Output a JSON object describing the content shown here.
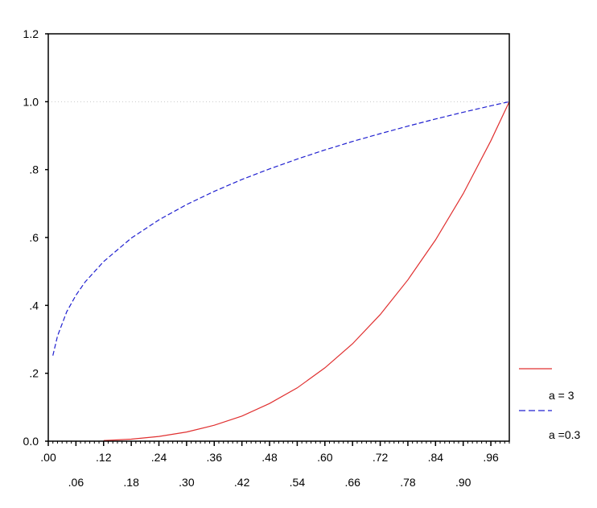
{
  "chart_data": {
    "type": "line",
    "title": "",
    "xlabel": "",
    "ylabel": "",
    "xlim": [
      0,
      1
    ],
    "ylim": [
      0,
      1.2
    ],
    "x_ticks": [
      0.0,
      0.06,
      0.12,
      0.18,
      0.24,
      0.3,
      0.36,
      0.42,
      0.48,
      0.54,
      0.6,
      0.66,
      0.72,
      0.78,
      0.84,
      0.9,
      0.96
    ],
    "x_tick_labels": [
      ".00",
      ".06",
      ".12",
      ".18",
      ".24",
      ".30",
      ".36",
      ".42",
      ".48",
      ".54",
      ".60",
      ".66",
      ".72",
      ".78",
      ".84",
      ".90",
      ".96"
    ],
    "y_ticks": [
      0.0,
      0.2,
      0.4,
      0.6,
      0.8,
      1.0,
      1.2
    ],
    "y_tick_labels": [
      "0.0",
      ".2",
      ".4",
      ".6",
      ".8",
      "1.0",
      "1.2"
    ],
    "reference_line_y": 1.0,
    "grid": false,
    "legend_position": "right",
    "series": [
      {
        "name": "a = 3",
        "color": "#e03030",
        "dash": "solid",
        "x": [
          0.12,
          0.18,
          0.24,
          0.3,
          0.36,
          0.42,
          0.48,
          0.54,
          0.6,
          0.66,
          0.72,
          0.78,
          0.84,
          0.9,
          0.96,
          1.0
        ],
        "y": [
          0.002,
          0.006,
          0.014,
          0.027,
          0.047,
          0.074,
          0.111,
          0.157,
          0.216,
          0.287,
          0.373,
          0.475,
          0.593,
          0.729,
          0.885,
          1.0
        ]
      },
      {
        "name": "a =0.3",
        "color": "#2020d0",
        "dash": "dashed",
        "x": [
          0.01,
          0.02,
          0.04,
          0.06,
          0.08,
          0.12,
          0.18,
          0.24,
          0.3,
          0.36,
          0.42,
          0.48,
          0.54,
          0.6,
          0.66,
          0.72,
          0.78,
          0.84,
          0.9,
          0.96,
          1.0
        ],
        "y": [
          0.252,
          0.31,
          0.381,
          0.43,
          0.469,
          0.529,
          0.598,
          0.652,
          0.697,
          0.736,
          0.771,
          0.802,
          0.831,
          0.858,
          0.883,
          0.906,
          0.928,
          0.949,
          0.969,
          0.988,
          1.0
        ]
      }
    ]
  }
}
